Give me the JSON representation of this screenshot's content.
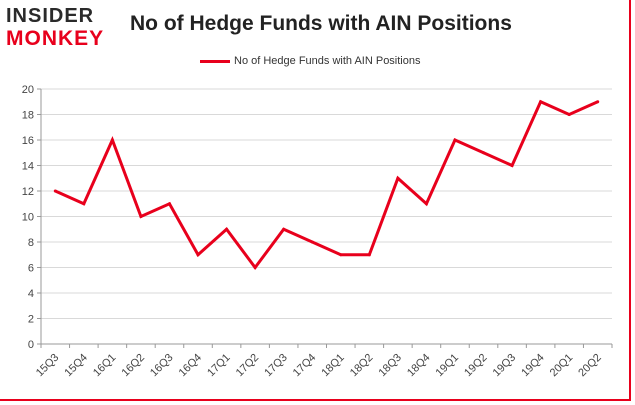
{
  "logo": {
    "line1": "INSIDER",
    "line2": "MONKEY"
  },
  "chart_data": {
    "type": "line",
    "title": "No of Hedge Funds with AIN Positions",
    "xlabel": "",
    "ylabel": "",
    "categories": [
      "15Q3",
      "15Q4",
      "16Q1",
      "16Q2",
      "16Q3",
      "16Q4",
      "17Q1",
      "17Q2",
      "17Q3",
      "17Q4",
      "18Q1",
      "18Q2",
      "18Q3",
      "18Q4",
      "19Q1",
      "19Q2",
      "19Q3",
      "19Q4",
      "20Q1",
      "20Q2"
    ],
    "series": [
      {
        "name": "No of Hedge Funds with AIN Positions",
        "values": [
          12,
          11,
          16,
          10,
          11,
          7,
          9,
          6,
          9,
          8,
          7,
          7,
          13,
          11,
          16,
          15,
          14,
          19,
          18,
          19
        ],
        "color": "#e8001c"
      }
    ],
    "ylim": [
      0,
      20
    ],
    "yticks": [
      0,
      2,
      4,
      6,
      8,
      10,
      12,
      14,
      16,
      18,
      20
    ],
    "grid": true,
    "legend": "top"
  }
}
